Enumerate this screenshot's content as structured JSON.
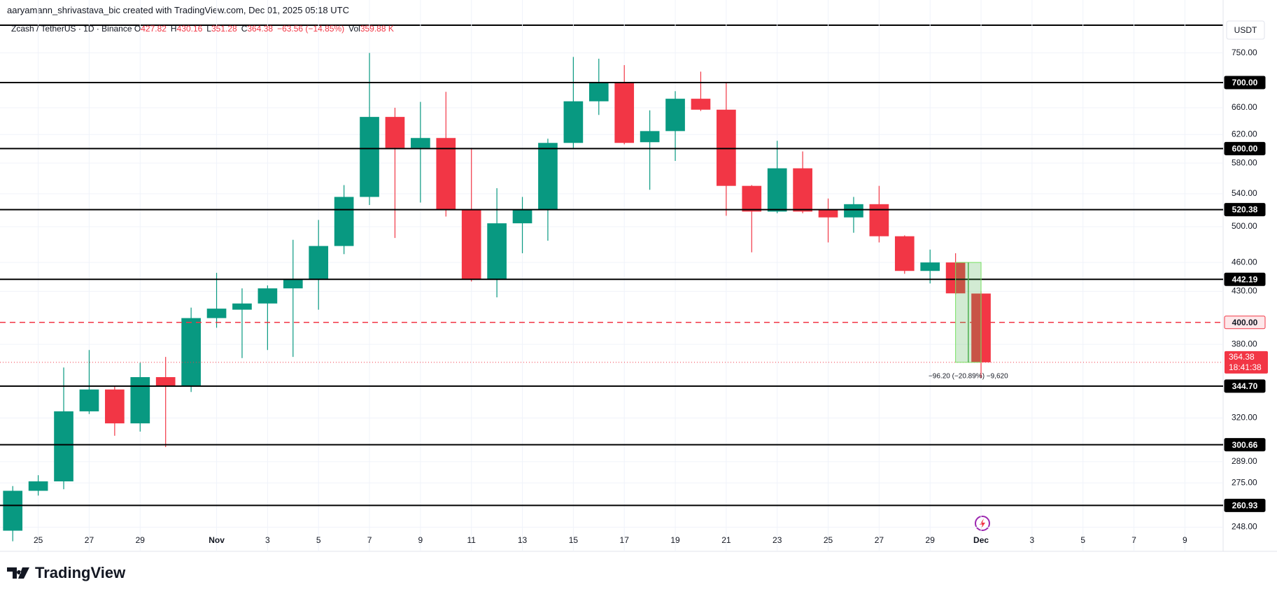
{
  "header": "aaryamann_shrivastava_bic created with TradingView.com, Dec 01, 2025 05:18 UTC",
  "brand": "TradingView",
  "chart_data": {
    "type": "candlestick",
    "symbol": "Zcash / TetherUS · 1D · Binance",
    "legend": [
      {
        "label": "O",
        "value": 427.82
      },
      {
        "label": "H",
        "value": 430.16
      },
      {
        "label": "L",
        "value": 351.28
      },
      {
        "label": "C",
        "value": 364.38
      }
    ],
    "change": "−63.56 (−14.85%)",
    "volume_label": "Vol",
    "volume": "359.88 K",
    "currency": "USDT",
    "up_color": "#089981",
    "down_color": "#f23645",
    "log_scale": true,
    "grid": true,
    "categories": [
      null,
      "25",
      null,
      "27",
      null,
      "29",
      null,
      null,
      "Nov",
      null,
      "3",
      null,
      "5",
      null,
      "7",
      null,
      "9",
      null,
      "11",
      null,
      "13",
      null,
      "15",
      null,
      "17",
      null,
      "19",
      null,
      "21",
      null,
      "23",
      null,
      "25",
      null,
      "27",
      null,
      "29",
      null,
      "Dec",
      null,
      "3",
      null,
      "5",
      null,
      "7",
      null,
      "9",
      null
    ],
    "open": [
      246,
      270,
      276,
      325,
      342,
      316,
      352,
      345,
      404,
      412,
      418,
      433,
      442,
      478,
      536,
      646,
      601,
      615,
      520,
      442,
      504,
      520,
      608,
      670,
      700,
      609,
      625,
      674,
      657,
      550,
      518,
      573,
      520,
      511,
      527,
      489,
      451,
      460,
      427.82,
      null,
      null,
      null,
      null,
      null,
      null,
      null,
      null,
      null
    ],
    "high": [
      273,
      280,
      360,
      375,
      345,
      364,
      369,
      414,
      449,
      433,
      436,
      485,
      508,
      551,
      750,
      660,
      669,
      685,
      601,
      547,
      536,
      614,
      743,
      740,
      729,
      656,
      686,
      718,
      700,
      551,
      611,
      596,
      534,
      536,
      550,
      490,
      474,
      470,
      430.16,
      null,
      null,
      null,
      null,
      null,
      null,
      null,
      null,
      null
    ],
    "low": [
      240,
      267,
      271,
      323,
      307,
      310,
      299,
      340,
      395,
      368,
      375,
      369,
      412,
      469,
      526,
      487,
      529,
      512,
      440,
      424,
      470,
      484,
      601,
      649,
      606,
      545,
      583,
      655,
      513,
      471,
      516,
      516,
      482,
      493,
      482,
      448,
      438,
      427,
      351.28,
      null,
      null,
      null,
      null,
      null,
      null,
      null,
      null,
      null
    ],
    "close": [
      270,
      276,
      325,
      342,
      316,
      352,
      345,
      404,
      413,
      418,
      433,
      442,
      478,
      536,
      646,
      601,
      615,
      520,
      442,
      504,
      520,
      608,
      670,
      700,
      608,
      625,
      674,
      657,
      550,
      518,
      573,
      518,
      511,
      527,
      489,
      451,
      460,
      428,
      364.38,
      null,
      null,
      null,
      null,
      null,
      null,
      null,
      null,
      null
    ],
    "ylim": [
      244.6,
      801.5
    ],
    "yticks": [
      {
        "value": 750,
        "label": "750.00"
      },
      {
        "value": 660,
        "label": "660.00"
      },
      {
        "value": 620,
        "label": "620.00"
      },
      {
        "value": 580,
        "label": "580.00"
      },
      {
        "value": 540,
        "label": "540.00"
      },
      {
        "value": 500,
        "label": "500.00"
      },
      {
        "value": 460,
        "label": "460.00"
      },
      {
        "value": 430,
        "label": "430.00"
      },
      {
        "value": 380,
        "label": "380.00"
      },
      {
        "value": 320,
        "label": "320.00"
      },
      {
        "value": 289,
        "label": "289.00"
      },
      {
        "value": 275,
        "label": "275.00"
      },
      {
        "value": 248,
        "label": "248.00"
      }
    ],
    "levels": [
      {
        "value": 700,
        "label": "700.00"
      },
      {
        "value": 600,
        "label": "600.00"
      },
      {
        "value": 520.38,
        "label": "520.38"
      },
      {
        "value": 442.19,
        "label": "442.19"
      },
      {
        "value": 400,
        "label": "400.00",
        "dashed": true
      },
      {
        "value": 344.7,
        "label": "344.70"
      },
      {
        "value": 300.66,
        "label": "300.66"
      },
      {
        "value": 260.93,
        "label": "260.93"
      }
    ],
    "countdown": "18:41:38",
    "measure_label": "−96.20 (−20.89%) −9,620"
  }
}
